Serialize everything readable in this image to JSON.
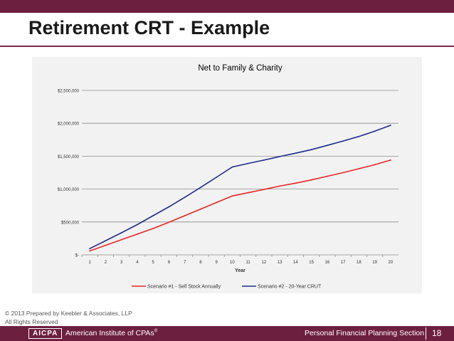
{
  "slide": {
    "title": "Retirement CRT - Example",
    "copyright_line1": "© 2013 Prepared by Keebler & Associates, LLP",
    "copyright_line2": "All Rights Reserved",
    "footer_logo": "AICPA",
    "footer_org": "American Institute of CPAs",
    "footer_org_mark": "®",
    "footer_section": "Personal Financial Planning Section",
    "page_number": "18",
    "colors": {
      "bar": "#6d1f3f",
      "chart_bg": "#f2f2f2"
    }
  },
  "chart_data": {
    "type": "line",
    "title": "Net to Family & Charity",
    "xlabel": "Year",
    "ylabel": "",
    "x": [
      1,
      2,
      3,
      4,
      5,
      6,
      7,
      8,
      9,
      10,
      11,
      12,
      13,
      14,
      15,
      16,
      17,
      18,
      19,
      20
    ],
    "ylim": [
      0,
      2500000
    ],
    "y_ticks": [
      0,
      500000,
      1000000,
      1500000,
      2000000,
      2500000
    ],
    "y_tick_labels": [
      "$-",
      "$500,000",
      "$1,000,000",
      "$1,500,000",
      "$2,000,000",
      "$2,500,000"
    ],
    "grid": true,
    "legend_position": "bottom",
    "series": [
      {
        "name": "Scenario #1 - Sell Stock Annually",
        "color": "#e8262a",
        "values": [
          60000,
          145000,
          230000,
          315000,
          400000,
          495000,
          595000,
          695000,
          795000,
          895000,
          945000,
          995000,
          1045000,
          1090000,
          1140000,
          1195000,
          1250000,
          1310000,
          1370000,
          1440000
        ]
      },
      {
        "name": "Scenario #2 - 20-Year CRUT",
        "color": "#1f2d8c",
        "values": [
          95000,
          215000,
          335000,
          460000,
          595000,
          730000,
          875000,
          1025000,
          1180000,
          1335000,
          1390000,
          1440000,
          1495000,
          1545000,
          1600000,
          1665000,
          1730000,
          1800000,
          1880000,
          1970000
        ]
      }
    ]
  }
}
